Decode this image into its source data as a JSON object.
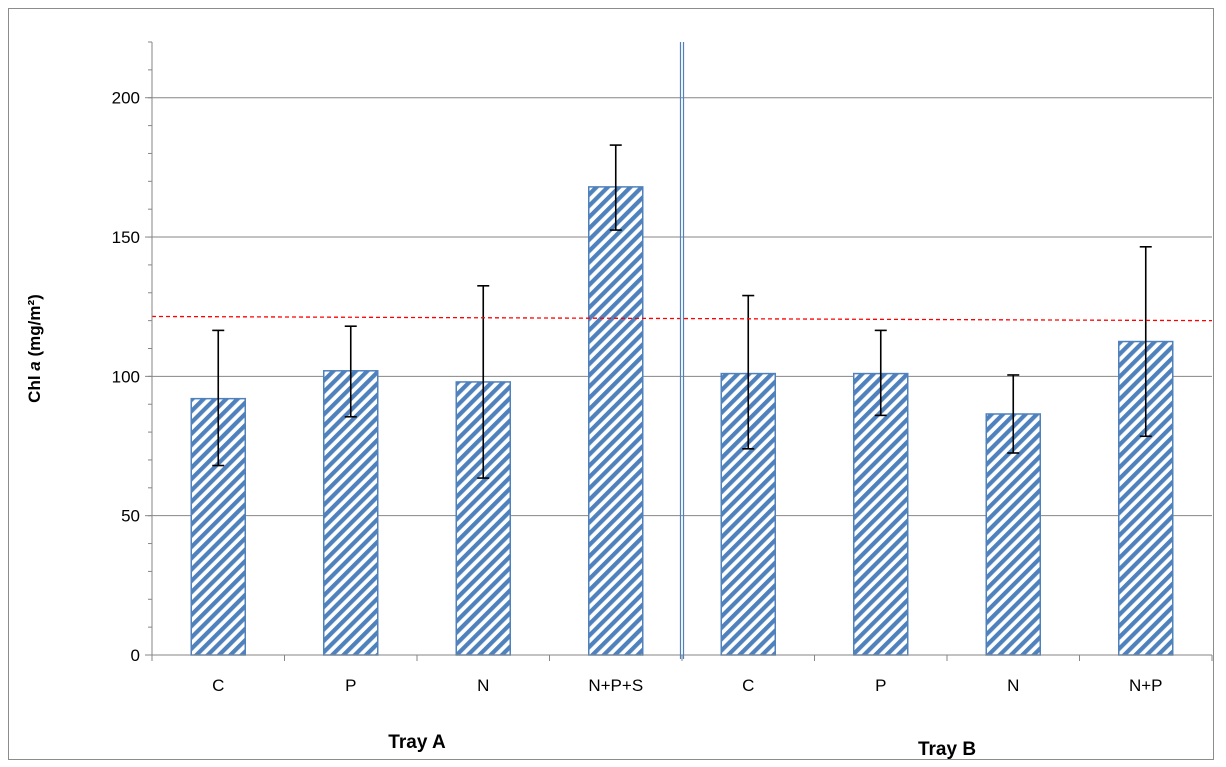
{
  "chart_data": {
    "type": "bar",
    "title": "",
    "ylabel_parts": [
      "Chl ",
      "a",
      " (mg/m²)"
    ],
    "ylim": [
      0,
      220
    ],
    "yticks": [
      0,
      50,
      100,
      150,
      200
    ],
    "grid": true,
    "categories": [
      "C",
      "P",
      "N",
      "N+P+S",
      "C",
      "P",
      "N",
      "N+P"
    ],
    "groups": [
      {
        "label": "Tray A",
        "categories": [
          "C",
          "P",
          "N",
          "N+P+S"
        ]
      },
      {
        "label": "Tray B",
        "categories": [
          "C",
          "P",
          "N",
          "N+P"
        ]
      }
    ],
    "series": [
      {
        "values": [
          92,
          102,
          98,
          168,
          101,
          101,
          86.5,
          112.5
        ],
        "error_low": [
          68,
          85.5,
          63.5,
          152.5,
          74,
          86,
          72.5,
          78.5
        ],
        "error_high": [
          116.5,
          118,
          132.5,
          183,
          129,
          116.5,
          100.5,
          146.5
        ],
        "fill_pattern": "diagonal-hatch",
        "color": "#4f81bd"
      }
    ],
    "reference_line": {
      "y_start": 121.5,
      "y_end": 120,
      "color": "#ff0000",
      "style": "dashed"
    },
    "divider_after_category": 4,
    "legend": "none"
  }
}
